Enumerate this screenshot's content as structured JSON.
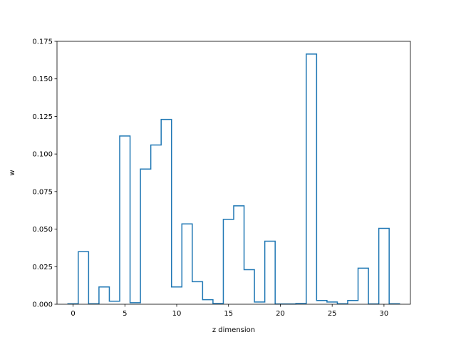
{
  "chart_data": {
    "type": "step",
    "xlabel": "z dimension",
    "ylabel": "w",
    "xlim": [
      -1.55,
      32.55
    ],
    "ylim": [
      0,
      0.175
    ],
    "x": [
      0,
      1,
      2,
      3,
      4,
      5,
      6,
      7,
      8,
      9,
      10,
      11,
      12,
      13,
      14,
      15,
      16,
      17,
      18,
      19,
      20,
      21,
      22,
      23,
      24,
      25,
      26,
      27,
      28,
      29,
      30,
      31
    ],
    "values": [
      0.0003,
      0.035,
      0.0003,
      0.0115,
      0.002,
      0.112,
      0.001,
      0.09,
      0.106,
      0.123,
      0.0115,
      0.0535,
      0.015,
      0.003,
      0.0005,
      0.0565,
      0.0655,
      0.023,
      0.0015,
      0.042,
      0.0002,
      0.0002,
      0.0005,
      0.1665,
      0.0025,
      0.0015,
      0.0003,
      0.0025,
      0.024,
      0.0002,
      0.0505,
      0.0003
    ],
    "x_ticks": [
      0,
      5,
      10,
      15,
      20,
      25,
      30
    ],
    "y_ticks": [
      0.0,
      0.025,
      0.05,
      0.075,
      0.1,
      0.125,
      0.15,
      0.175
    ],
    "x_tick_labels": [
      "0",
      "5",
      "10",
      "15",
      "20",
      "25",
      "30"
    ],
    "y_tick_labels": [
      "0.000",
      "0.025",
      "0.050",
      "0.075",
      "0.100",
      "0.125",
      "0.150",
      "0.175"
    ],
    "line_color": "#1f77b4",
    "grid": false,
    "legend": "none"
  }
}
